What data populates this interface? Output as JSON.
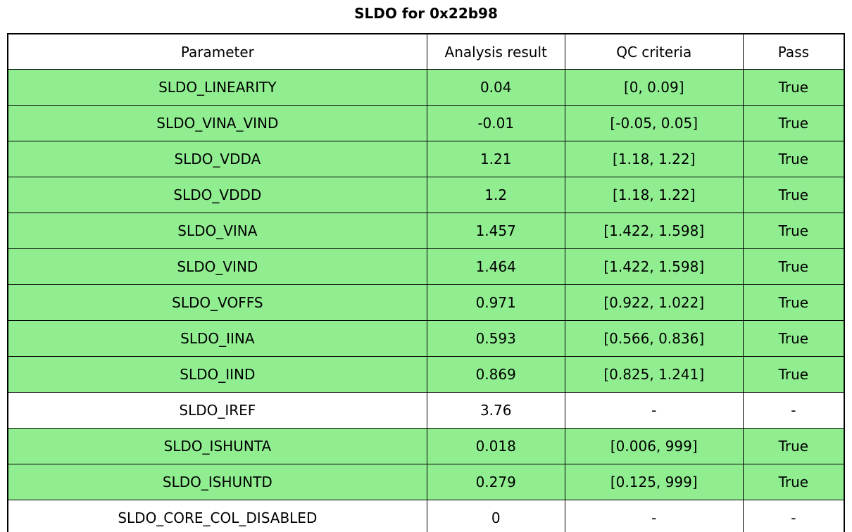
{
  "title": "SLDO for 0x22b98",
  "colors": {
    "pass_row_green": "#90ee90",
    "neutral_row_white": "#ffffff",
    "border_black": "#000000"
  },
  "table": {
    "columns": [
      "Parameter",
      "Analysis result",
      "QC criteria",
      "Pass"
    ],
    "rows": [
      {
        "parameter": "SLDO_LINEARITY",
        "analysis_result": "0.04",
        "qc_criteria": "[0, 0.09]",
        "pass": "True",
        "highlighted": true
      },
      {
        "parameter": "SLDO_VINA_VIND",
        "analysis_result": "-0.01",
        "qc_criteria": "[-0.05, 0.05]",
        "pass": "True",
        "highlighted": true
      },
      {
        "parameter": "SLDO_VDDA",
        "analysis_result": "1.21",
        "qc_criteria": "[1.18, 1.22]",
        "pass": "True",
        "highlighted": true
      },
      {
        "parameter": "SLDO_VDDD",
        "analysis_result": "1.2",
        "qc_criteria": "[1.18, 1.22]",
        "pass": "True",
        "highlighted": true
      },
      {
        "parameter": "SLDO_VINA",
        "analysis_result": "1.457",
        "qc_criteria": "[1.422, 1.598]",
        "pass": "True",
        "highlighted": true
      },
      {
        "parameter": "SLDO_VIND",
        "analysis_result": "1.464",
        "qc_criteria": "[1.422, 1.598]",
        "pass": "True",
        "highlighted": true
      },
      {
        "parameter": "SLDO_VOFFS",
        "analysis_result": "0.971",
        "qc_criteria": "[0.922, 1.022]",
        "pass": "True",
        "highlighted": true
      },
      {
        "parameter": "SLDO_IINA",
        "analysis_result": "0.593",
        "qc_criteria": "[0.566, 0.836]",
        "pass": "True",
        "highlighted": true
      },
      {
        "parameter": "SLDO_IIND",
        "analysis_result": "0.869",
        "qc_criteria": "[0.825, 1.241]",
        "pass": "True",
        "highlighted": true
      },
      {
        "parameter": "SLDO_IREF",
        "analysis_result": "3.76",
        "qc_criteria": "-",
        "pass": "-",
        "highlighted": false
      },
      {
        "parameter": "SLDO_ISHUNTA",
        "analysis_result": "0.018",
        "qc_criteria": "[0.006, 999]",
        "pass": "True",
        "highlighted": true
      },
      {
        "parameter": "SLDO_ISHUNTD",
        "analysis_result": "0.279",
        "qc_criteria": "[0.125, 999]",
        "pass": "True",
        "highlighted": true
      },
      {
        "parameter": "SLDO_CORE_COL_DISABLED",
        "analysis_result": "0",
        "qc_criteria": "-",
        "pass": "-",
        "highlighted": false
      }
    ]
  },
  "chart_data": {
    "type": "table",
    "title": "SLDO for 0x22b98",
    "columns": [
      "Parameter",
      "Analysis result",
      "QC criteria",
      "Pass"
    ],
    "rows": [
      [
        "SLDO_LINEARITY",
        "0.04",
        "[0, 0.09]",
        "True"
      ],
      [
        "SLDO_VINA_VIND",
        "-0.01",
        "[-0.05, 0.05]",
        "True"
      ],
      [
        "SLDO_VDDA",
        "1.21",
        "[1.18, 1.22]",
        "True"
      ],
      [
        "SLDO_VDDD",
        "1.2",
        "[1.18, 1.22]",
        "True"
      ],
      [
        "SLDO_VINA",
        "1.457",
        "[1.422, 1.598]",
        "True"
      ],
      [
        "SLDO_VIND",
        "1.464",
        "[1.422, 1.598]",
        "True"
      ],
      [
        "SLDO_VOFFS",
        "0.971",
        "[0.922, 1.022]",
        "True"
      ],
      [
        "SLDO_IINA",
        "0.593",
        "[0.566, 0.836]",
        "True"
      ],
      [
        "SLDO_IIND",
        "0.869",
        "[0.825, 1.241]",
        "True"
      ],
      [
        "SLDO_IREF",
        "3.76",
        "-",
        "-"
      ],
      [
        "SLDO_ISHUNTA",
        "0.018",
        "[0.006, 999]",
        "True"
      ],
      [
        "SLDO_ISHUNTD",
        "0.279",
        "[0.125, 999]",
        "True"
      ],
      [
        "SLDO_CORE_COL_DISABLED",
        "0",
        "-",
        "-"
      ]
    ],
    "row_background": [
      "green",
      "green",
      "green",
      "green",
      "green",
      "green",
      "green",
      "green",
      "green",
      "white",
      "green",
      "green",
      "white"
    ],
    "header_background": "white",
    "grid": true,
    "legend_position": "none"
  }
}
